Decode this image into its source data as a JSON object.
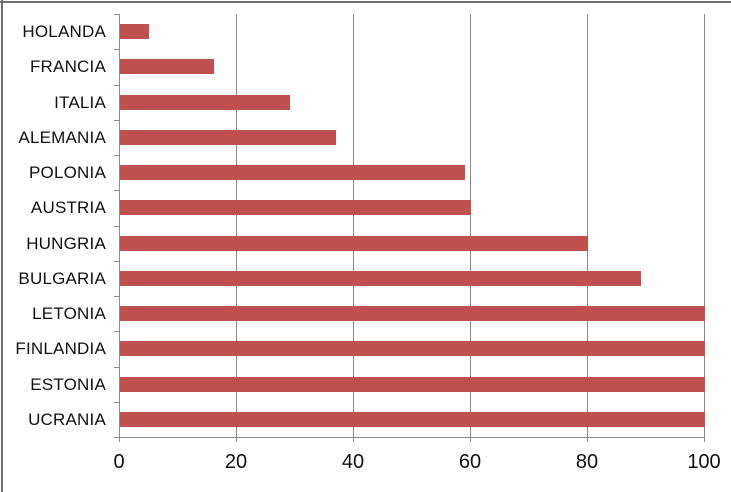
{
  "window": {
    "background_color": "#FFFFFF",
    "border_color": "#6F6F6F"
  },
  "chart_data": {
    "type": "bar",
    "orientation": "horizontal",
    "title": "",
    "xlabel": "",
    "ylabel": "",
    "categories": [
      "HOLANDA",
      "FRANCIA",
      "ITALIA",
      "ALEMANIA",
      "POLONIA",
      "AUSTRIA",
      "HUNGRIA",
      "BULGARIA",
      "LETONIA",
      "FINLANDIA",
      "ESTONIA",
      "UCRANIA"
    ],
    "values": [
      5,
      16,
      29,
      37,
      59,
      60,
      80,
      89,
      100,
      100,
      100,
      100
    ],
    "xlim": [
      0,
      100
    ],
    "x_ticks": [
      0,
      20,
      40,
      60,
      80,
      100
    ],
    "x_tick_labels": [
      "0",
      "20",
      "40",
      "60",
      "80",
      "100"
    ],
    "grid": "vertical",
    "legend": "none",
    "bar_color": "#C0504D",
    "axis_color": "#8C8C8C",
    "text_color": "#111111"
  }
}
